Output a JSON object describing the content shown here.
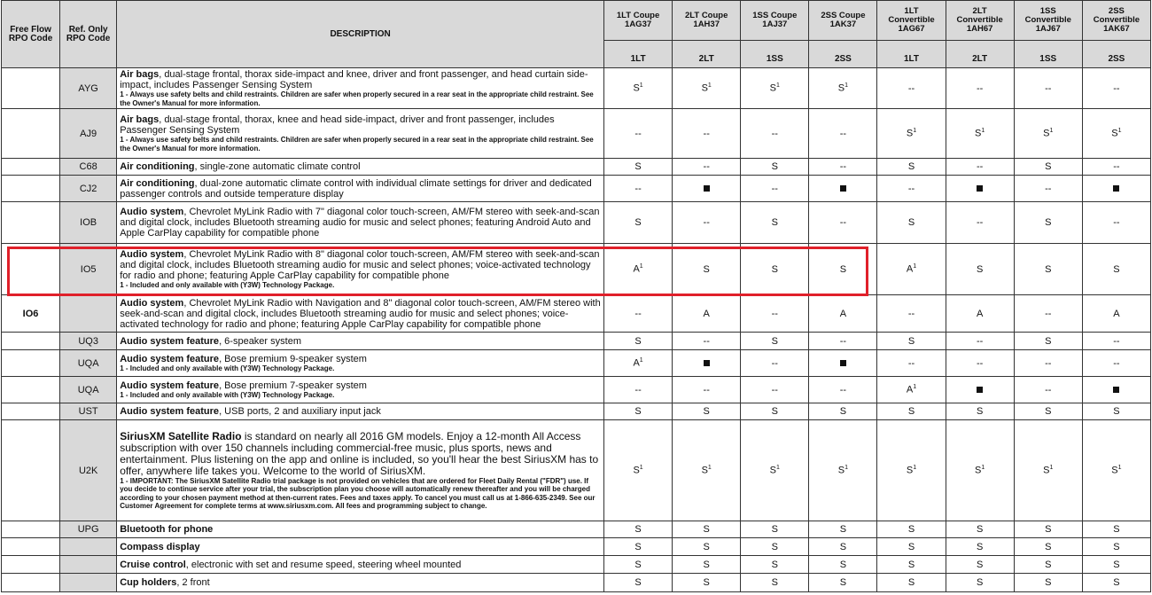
{
  "header": {
    "free_flow": "Free Flow RPO Code",
    "ref_only": "Ref. Only RPO Code",
    "description": "DESCRIPTION",
    "models": [
      {
        "name": "1LT Coupe",
        "code": "1AG37",
        "trim": "1LT"
      },
      {
        "name": "2LT Coupe",
        "code": "1AH37",
        "trim": "2LT"
      },
      {
        "name": "1SS Coupe",
        "code": "1AJ37",
        "trim": "1SS"
      },
      {
        "name": "2SS Coupe",
        "code": "1AK37",
        "trim": "2SS"
      },
      {
        "name": "1LT Convertible",
        "code": "1AG67",
        "trim": "1LT"
      },
      {
        "name": "2LT Convertible",
        "code": "1AH67",
        "trim": "2LT"
      },
      {
        "name": "1SS Convertible",
        "code": "1AJ67",
        "trim": "1SS"
      },
      {
        "name": "2SS Convertible",
        "code": "1AK67",
        "trim": "2SS"
      }
    ]
  },
  "highlight_color": "#e0202a",
  "rows": [
    {
      "ff": "",
      "ref": "AYG",
      "title": "Air bags",
      "text": ", dual-stage frontal, thorax side-impact and knee, driver and front passenger, and head curtain side-impact, includes Passenger Sensing System",
      "note": "1 - Always use safety belts and child restraints. Children are safer when properly secured in a rear seat in the appropriate child restraint. See the Owner's Manual for more information.",
      "values": [
        "S1",
        "S1",
        "S1",
        "S1",
        "--",
        "--",
        "--",
        "--"
      ]
    },
    {
      "ff": "",
      "ref": "AJ9",
      "title": "Air bags",
      "text": ", dual-stage frontal, thorax, knee and head side-impact, driver and front passenger, includes Passenger Sensing System",
      "note": "1 - Always use safety belts and child restraints. Children are safer when properly secured in a rear seat in the appropriate child restraint. See the Owner's Manual for more information.",
      "values": [
        "--",
        "--",
        "--",
        "--",
        "S1",
        "S1",
        "S1",
        "S1"
      ]
    },
    {
      "ff": "",
      "ref": "C68",
      "title": "Air conditioning",
      "text": ", single-zone automatic climate control",
      "note": "",
      "values": [
        "S",
        "--",
        "S",
        "--",
        "S",
        "--",
        "S",
        "--"
      ]
    },
    {
      "ff": "",
      "ref": "CJ2",
      "title": "Air conditioning",
      "text": ", dual-zone automatic climate control with individual climate settings for driver and dedicated passenger controls and outside temperature display",
      "note": "",
      "values": [
        "--",
        "■",
        "--",
        "■",
        "--",
        "■",
        "--",
        "■"
      ]
    },
    {
      "ff": "",
      "ref": "IOB",
      "title": "Audio system",
      "text": ", Chevrolet MyLink Radio with 7\" diagonal color touch-screen, AM/FM stereo with seek-and-scan and digital clock, includes Bluetooth streaming audio for music and select phones; featuring Android Auto and Apple CarPlay capability for compatible phone",
      "note": "",
      "values": [
        "S",
        "--",
        "S",
        "--",
        "S",
        "--",
        "S",
        "--"
      ]
    },
    {
      "ff": "",
      "ref": "IO5",
      "title": "Audio system",
      "text": ", Chevrolet MyLink Radio with 8\" diagonal color touch-screen, AM/FM stereo with seek-and-scan and digital clock, includes Bluetooth streaming audio for music and select phones; voice-activated technology for radio and phone; featuring Apple CarPlay capability for compatible phone",
      "note": "1 - Included and only available with (Y3W) Technology Package.",
      "values": [
        "A1",
        "S",
        "S",
        "S",
        "A1",
        "S",
        "S",
        "S"
      ]
    },
    {
      "ff": "IO6",
      "ref": "",
      "title": "Audio system",
      "text": ", Chevrolet MyLink Radio with Navigation and 8\" diagonal color touch-screen, AM/FM stereo with seek-and-scan and digital clock, includes Bluetooth streaming audio for music and select phones; voice-activated technology for radio and phone; featuring Apple CarPlay capability for compatible phone",
      "note": "",
      "values": [
        "--",
        "A",
        "--",
        "A",
        "--",
        "A",
        "--",
        "A"
      ]
    },
    {
      "ff": "",
      "ref": "UQ3",
      "title": "Audio system feature",
      "text": ", 6-speaker system",
      "note": "",
      "values": [
        "S",
        "--",
        "S",
        "--",
        "S",
        "--",
        "S",
        "--"
      ]
    },
    {
      "ff": "",
      "ref": "UQA",
      "title": "Audio system feature",
      "text": ", Bose premium 9-speaker system",
      "note": "1 - Included and only available with (Y3W) Technology Package.",
      "values": [
        "A1",
        "■",
        "--",
        "■",
        "--",
        "--",
        "--",
        "--"
      ]
    },
    {
      "ff": "",
      "ref": "UQA",
      "title": "Audio system feature",
      "text": ", Bose premium 7-speaker system",
      "note": "1 - Included and only available with (Y3W) Technology Package.",
      "values": [
        "--",
        "--",
        "--",
        "--",
        "A1",
        "■",
        "--",
        "■"
      ]
    },
    {
      "ff": "",
      "ref": "UST",
      "title": "Audio system feature",
      "text": ", USB ports, 2 and auxiliary input jack",
      "note": "",
      "values": [
        "S",
        "S",
        "S",
        "S",
        "S",
        "S",
        "S",
        "S"
      ]
    },
    {
      "ff": "",
      "ref": "U2K",
      "title": "SiriusXM Satellite Radio",
      "text": " is standard on nearly all 2016 GM models. Enjoy a 12-month All Access subscription with over 150 channels including commercial-free music, plus sports, news and entertainment. Plus listening on the app and online is included, so you'll hear the best SiriusXM has to offer, anywhere life takes you. Welcome to the world of SiriusXM.",
      "note": "1 - IMPORTANT: The SiriusXM Satellite Radio trial package is not provided on vehicles that are ordered for Fleet Daily Rental (\"FDR\") use. If you decide to continue service after your trial, the subscription plan you choose will automatically renew thereafter and you will be charged according to your chosen payment method at then-current rates. Fees and taxes apply. To cancel you must call us at 1-866-635-2349. See our Customer Agreement for complete terms at www.siriusxm.com. All fees and programming subject to change.",
      "values": [
        "S1",
        "S1",
        "S1",
        "S1",
        "S1",
        "S1",
        "S1",
        "S1"
      ]
    },
    {
      "ff": "",
      "ref": "UPG",
      "title": "Bluetooth for phone",
      "text": "",
      "note": "",
      "values": [
        "S",
        "S",
        "S",
        "S",
        "S",
        "S",
        "S",
        "S"
      ]
    },
    {
      "ff": "",
      "ref": "",
      "title": "Compass display",
      "text": "",
      "note": "",
      "values": [
        "S",
        "S",
        "S",
        "S",
        "S",
        "S",
        "S",
        "S"
      ]
    },
    {
      "ff": "",
      "ref": "",
      "title": "Cruise control",
      "text": ", electronic with set and resume speed, steering wheel mounted",
      "note": "",
      "values": [
        "S",
        "S",
        "S",
        "S",
        "S",
        "S",
        "S",
        "S"
      ]
    },
    {
      "ff": "",
      "ref": "",
      "title": "Cup holders",
      "text": ", 2 front",
      "note": "",
      "values": [
        "S",
        "S",
        "S",
        "S",
        "S",
        "S",
        "S",
        "S"
      ]
    }
  ]
}
